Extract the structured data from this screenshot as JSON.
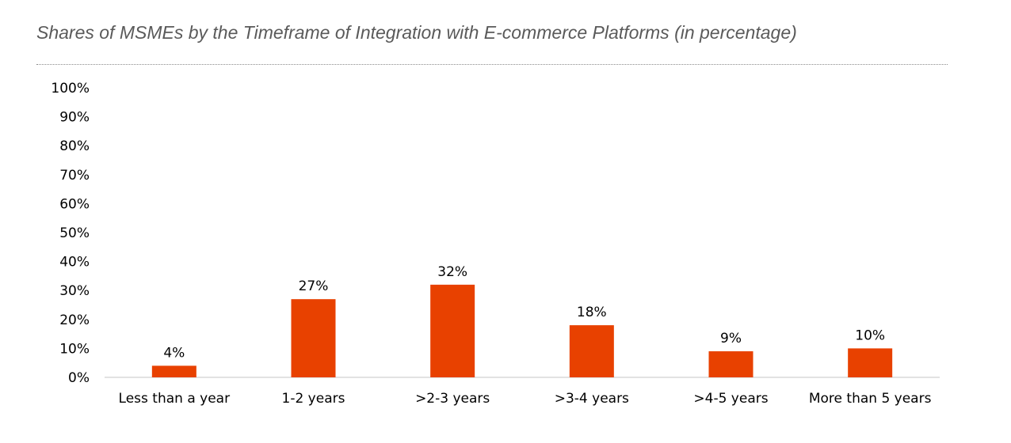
{
  "chart_data": {
    "type": "bar",
    "title": "Shares of MSMEs by the Timeframe of Integration with E-commerce Platforms (in percentage)",
    "categories": [
      "Less than a year",
      "1-2 years",
      ">2-3 years",
      ">3-4 years",
      ">4-5 years",
      "More than 5 years"
    ],
    "values": [
      4,
      27,
      32,
      18,
      9,
      10
    ],
    "data_labels": [
      "4%",
      "27%",
      "32%",
      "18%",
      "9%",
      "10%"
    ],
    "y_ticks": [
      "0%",
      "10%",
      "20%",
      "30%",
      "40%",
      "50%",
      "60%",
      "70%",
      "80%",
      "90%",
      "100%"
    ],
    "ylim": [
      0,
      100
    ],
    "xlabel": "",
    "ylabel": "",
    "grid": false,
    "bar_color": "#E84100"
  }
}
